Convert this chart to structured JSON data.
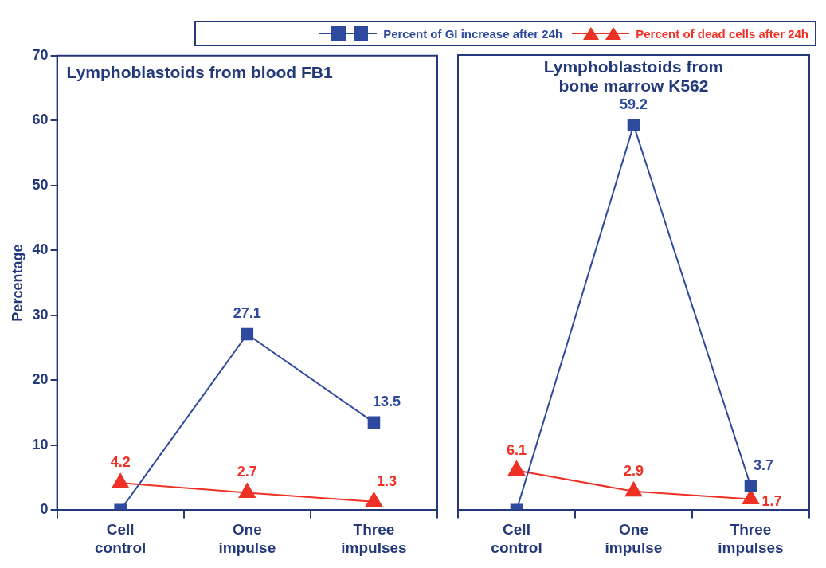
{
  "chart_data": [
    {
      "type": "line",
      "title": "Lymphoblastoids from blood FB1",
      "ylabel": "Percentage",
      "categories": [
        "Cell control",
        "One impulse",
        "Three impulses"
      ],
      "ylim": [
        0,
        70
      ],
      "yticks": [
        0,
        10,
        20,
        30,
        40,
        50,
        60,
        70
      ],
      "grid": false,
      "legend": "top right",
      "series": [
        {
          "name": "Percent of GI increase after 24h",
          "color": "#2e4a9e",
          "marker": "square",
          "values": [
            0,
            27.1,
            13.5
          ],
          "value_labels": [
            null,
            "27.1",
            "13.5"
          ]
        },
        {
          "name": "Percent of dead cells after 24h",
          "color": "#ee3124",
          "marker": "triangle",
          "values": [
            4.2,
            2.7,
            1.3
          ],
          "value_labels": [
            "4.2",
            "2.7",
            "1.3"
          ]
        }
      ]
    },
    {
      "type": "line",
      "title": "Lymphoblastoids from bone marrow K562",
      "categories": [
        "Cell control",
        "One impulse",
        "Three impulses"
      ],
      "ylim": [
        0,
        70
      ],
      "yticks": [
        0,
        10,
        20,
        30,
        40,
        50,
        60,
        70
      ],
      "grid": false,
      "tick_labels": "x",
      "series": [
        {
          "color": "#2e4a9e",
          "marker": "square",
          "values": [
            0,
            59.2,
            3.7
          ],
          "value_labels": [
            null,
            "59.2",
            "3.7"
          ]
        },
        {
          "color": "#ee3124",
          "marker": "triangle",
          "values": [
            6.1,
            2.9,
            1.7
          ],
          "value_labels": [
            "6.1",
            "2.9",
            "1.7"
          ]
        }
      ]
    }
  ]
}
